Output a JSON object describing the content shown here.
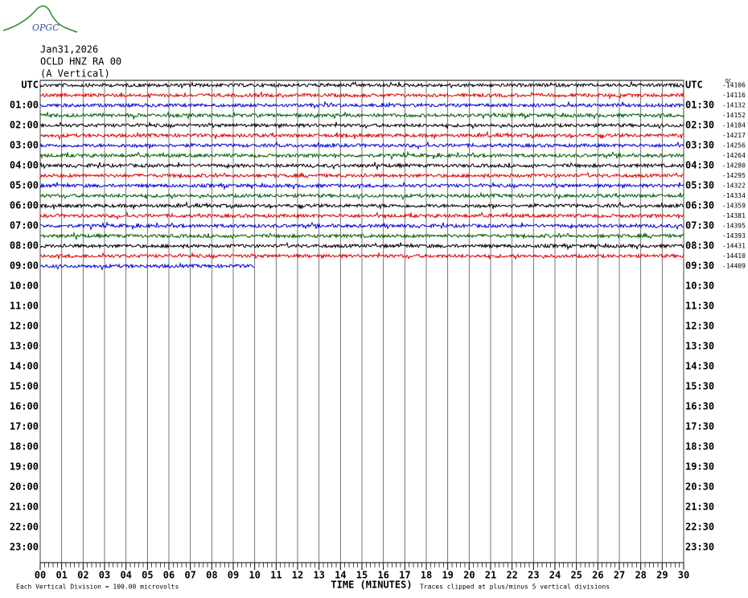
{
  "header": {
    "logo": "OPGC",
    "date": "Jan31,2026",
    "station": "OCLD HNZ RA 00",
    "component": "(A Vertical)",
    "dc": "DC"
  },
  "left_labels": [
    "UTC",
    "01:00",
    "02:00",
    "03:00",
    "04:00",
    "05:00",
    "06:00",
    "07:00",
    "08:00",
    "09:00",
    "10:00",
    "11:00",
    "12:00",
    "13:00",
    "14:00",
    "15:00",
    "16:00",
    "17:00",
    "18:00",
    "19:00",
    "20:00",
    "21:00",
    "22:00",
    "23:00"
  ],
  "right_labels": [
    "UTC",
    "01:30",
    "02:30",
    "03:30",
    "04:30",
    "05:30",
    "06:30",
    "07:30",
    "08:30",
    "09:30",
    "10:30",
    "11:30",
    "12:30",
    "13:30",
    "14:30",
    "15:30",
    "16:30",
    "17:30",
    "18:30",
    "19:30",
    "20:30",
    "21:30",
    "22:30",
    "23:30"
  ],
  "offsets": [
    -14106,
    -14116,
    -14132,
    -14152,
    -14184,
    -14217,
    -14256,
    -14264,
    -14280,
    -14295,
    -14322,
    -14334,
    -14359,
    -14381,
    -14395,
    -14393,
    -14431,
    -14410,
    -14409
  ],
  "trace_colors": [
    "#000000",
    "#e00000",
    "#0000e0",
    "#006000"
  ],
  "trace_ends": [
    30,
    30,
    30,
    30,
    30,
    30,
    30,
    30,
    30,
    30,
    30,
    30,
    30,
    30,
    30,
    30,
    30,
    30,
    10
  ],
  "xlim": [
    0,
    30
  ],
  "x_ticks": [
    "00",
    "01",
    "02",
    "03",
    "04",
    "05",
    "06",
    "07",
    "08",
    "09",
    "10",
    "11",
    "12",
    "13",
    "14",
    "15",
    "16",
    "17",
    "18",
    "19",
    "20",
    "21",
    "22",
    "23",
    "24",
    "25",
    "26",
    "27",
    "28",
    "29",
    "30"
  ],
  "x_label": "TIME (MINUTES)",
  "footer_left": "Each Vertical Division =  100.00 microvolts",
  "footer_right": "Traces clipped at plus/minus 5 vertical divisions"
}
